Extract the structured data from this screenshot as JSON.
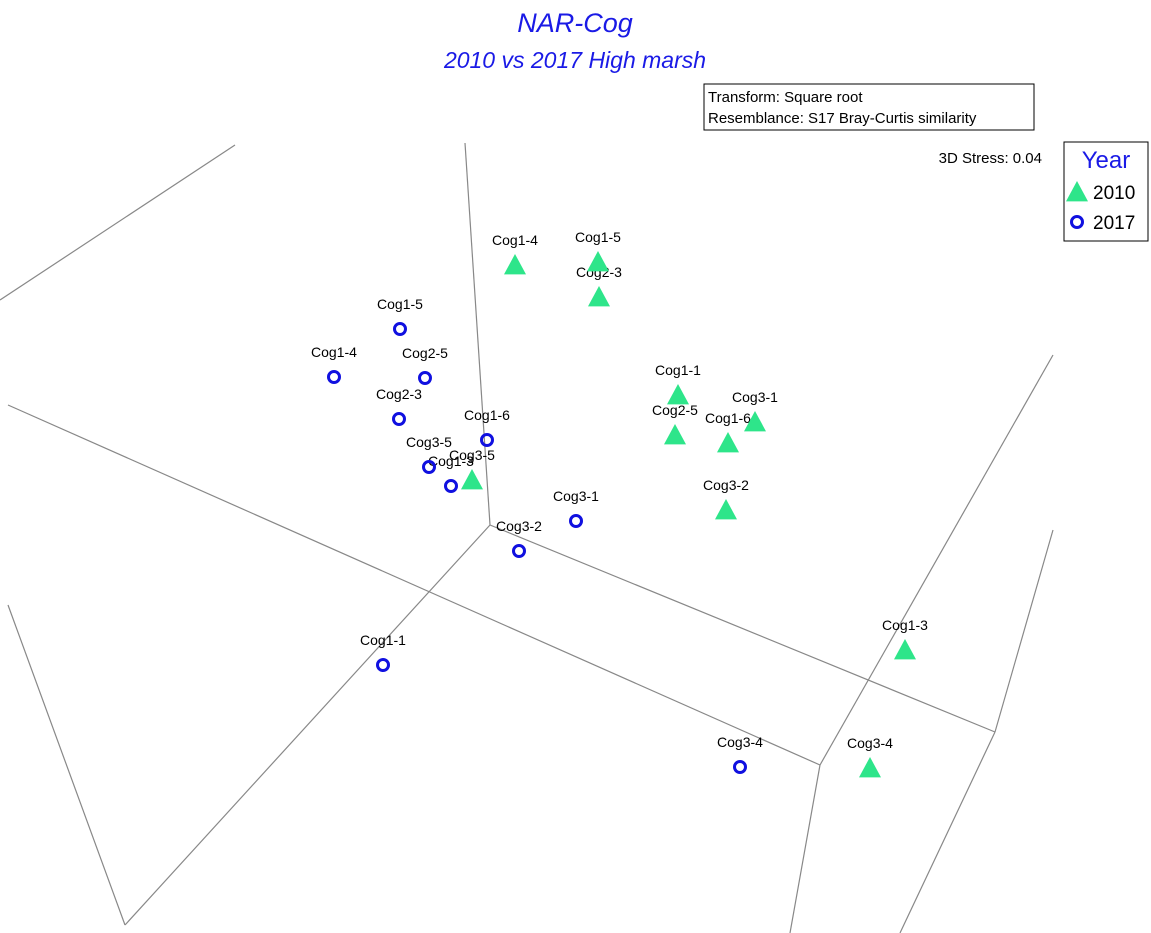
{
  "chart_data": {
    "type": "scatter",
    "title": "NAR-Cog",
    "subtitle": "2010 vs 2017 High marsh",
    "annotations": [
      "Transform: Square root",
      "Resemblance: S17 Bray-Curtis similarity"
    ],
    "stress": "3D Stress: 0.04",
    "legend_title": "Year",
    "legend": "top-right",
    "xlim": [
      0,
      11.51
    ],
    "ylim": [
      0,
      9.33
    ],
    "series": [
      {
        "name": "2010",
        "marker": "triangle",
        "color": "#2ee58a",
        "labels": [
          "Cog1-4",
          "Cog1-5",
          "Cog2-3",
          "Cog1-1",
          "Cog3-1",
          "Cog2-5",
          "Cog1-6",
          "Cog3-5",
          "Cog3-2",
          "Cog1-3",
          "Cog3-4"
        ],
        "x": [
          5.15,
          5.98,
          5.99,
          6.78,
          7.55,
          6.75,
          7.28,
          4.72,
          7.26,
          9.05,
          8.7
        ],
        "y": [
          6.68,
          6.71,
          6.36,
          5.38,
          5.11,
          4.98,
          4.9,
          4.53,
          4.23,
          2.83,
          1.65
        ]
      },
      {
        "name": "2017",
        "marker": "circle",
        "color": "#1010e0",
        "labels": [
          "Cog1-5",
          "Cog1-4",
          "Cog2-5",
          "Cog2-3",
          "Cog1-6",
          "Cog3-5",
          "Cog1-3",
          "Cog3-1",
          "Cog3-2",
          "Cog1-1",
          "Cog3-4"
        ],
        "x": [
          4.0,
          3.34,
          4.25,
          3.99,
          4.87,
          4.29,
          4.51,
          5.76,
          5.19,
          3.83,
          7.4
        ],
        "y": [
          6.04,
          5.56,
          5.55,
          5.14,
          4.93,
          4.66,
          4.47,
          4.12,
          3.82,
          2.68,
          1.66
        ]
      }
    ]
  }
}
